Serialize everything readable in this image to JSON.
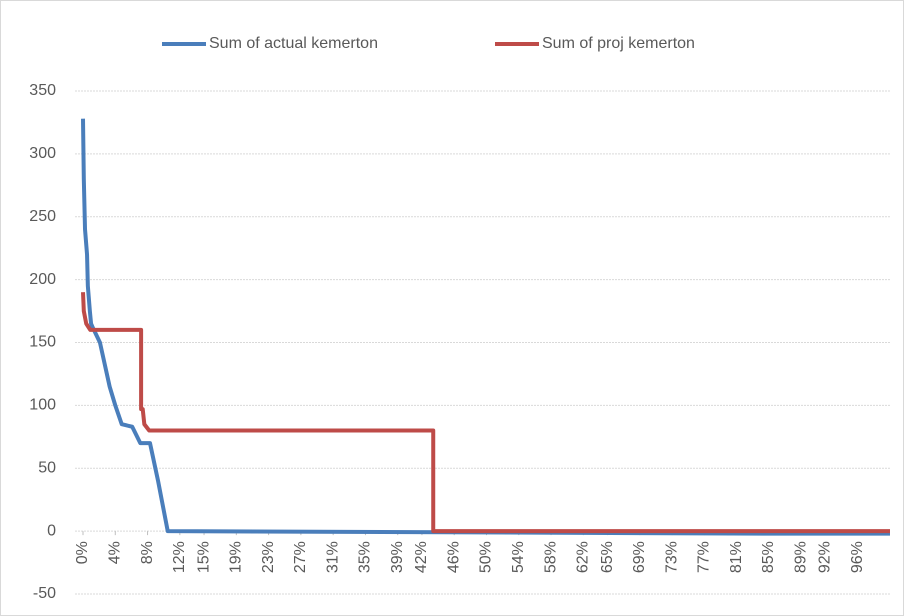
{
  "chart_data": {
    "type": "line",
    "series": [
      {
        "name": "Sum of actual kemerton",
        "color": "#4a7ebb",
        "x": [
          0,
          0.1,
          0.25,
          0.5,
          0.6,
          0.85,
          1.0,
          1.2,
          2.1,
          3.3,
          4.0,
          4.8,
          6.1,
          7.1,
          8.3,
          9.3,
          10.5,
          85,
          100
        ],
        "values": [
          328,
          280,
          240,
          220,
          195,
          175,
          165,
          162,
          150,
          115,
          100,
          85,
          83,
          70,
          70,
          40,
          0,
          -2,
          -2
        ]
      },
      {
        "name": "Sum of proj kemerton",
        "color": "#be4b48",
        "x": [
          0,
          0.1,
          0.4,
          0.9,
          7.2,
          7.2,
          7.4,
          7.6,
          8.2,
          43.4,
          43.4,
          100
        ],
        "values": [
          190,
          175,
          165,
          160,
          160,
          97,
          97,
          85,
          80,
          80,
          0,
          0
        ]
      }
    ],
    "xlim": [
      0,
      100
    ],
    "xticks": [
      {
        "value": 0,
        "label": "0%"
      },
      {
        "value": 4,
        "label": "4%"
      },
      {
        "value": 8,
        "label": "8%"
      },
      {
        "value": 12,
        "label": "12%"
      },
      {
        "value": 15,
        "label": "15%"
      },
      {
        "value": 19,
        "label": "19%"
      },
      {
        "value": 23,
        "label": "23%"
      },
      {
        "value": 27,
        "label": "27%"
      },
      {
        "value": 31,
        "label": "31%"
      },
      {
        "value": 35,
        "label": "35%"
      },
      {
        "value": 39,
        "label": "39%"
      },
      {
        "value": 42,
        "label": "42%"
      },
      {
        "value": 46,
        "label": "46%"
      },
      {
        "value": 50,
        "label": "50%"
      },
      {
        "value": 54,
        "label": "54%"
      },
      {
        "value": 58,
        "label": "58%"
      },
      {
        "value": 62,
        "label": "62%"
      },
      {
        "value": 65,
        "label": "65%"
      },
      {
        "value": 69,
        "label": "69%"
      },
      {
        "value": 73,
        "label": "73%"
      },
      {
        "value": 77,
        "label": "77%"
      },
      {
        "value": 81,
        "label": "81%"
      },
      {
        "value": 85,
        "label": "85%"
      },
      {
        "value": 89,
        "label": "89%"
      },
      {
        "value": 92,
        "label": "92%"
      },
      {
        "value": 96,
        "label": "96%"
      }
    ],
    "ylim": [
      -50,
      350
    ],
    "yticks": [
      -50,
      0,
      50,
      100,
      150,
      200,
      250,
      300,
      350
    ],
    "grid": true,
    "legend": "top"
  }
}
